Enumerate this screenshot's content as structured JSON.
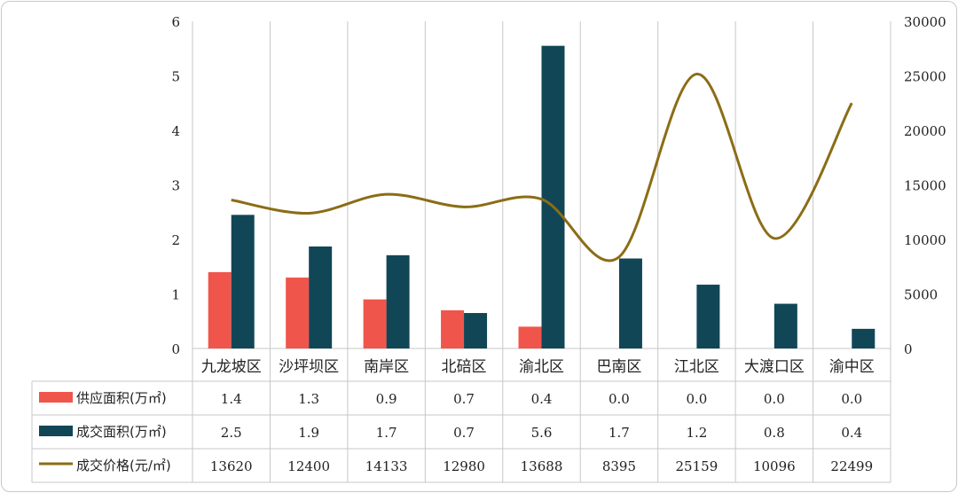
{
  "chart_data": {
    "type": "bar",
    "categories": [
      "九龙坡区",
      "沙坪坝区",
      "南岸区",
      "北碚区",
      "渝北区",
      "巴南区",
      "江北区",
      "大渡口区",
      "渝中区"
    ],
    "series": [
      {
        "name": "供应面积(万㎡)",
        "type": "bar",
        "axis": "left",
        "color": "#f0554c",
        "values": [
          1.4,
          1.3,
          0.9,
          0.7,
          0.4,
          0.0,
          0.0,
          0.0,
          0.0
        ],
        "table_values": [
          "1.4",
          "1.3",
          "0.9",
          "0.7",
          "0.4",
          "0.0",
          "0.0",
          "0.0",
          "0.0"
        ]
      },
      {
        "name": "成交面积(万㎡)",
        "type": "bar",
        "axis": "left",
        "color": "#114657",
        "values": [
          2.45,
          1.87,
          1.71,
          0.65,
          5.55,
          1.65,
          1.17,
          0.82,
          0.36
        ],
        "table_values": [
          "2.5",
          "1.9",
          "1.7",
          "0.7",
          "5.6",
          "1.7",
          "1.2",
          "0.8",
          "0.4"
        ]
      },
      {
        "name": "成交价格(元/㎡)",
        "type": "line",
        "axis": "right",
        "color": "#8b6d16",
        "values": [
          13620,
          12400,
          14133,
          12980,
          13688,
          8395,
          25159,
          10096,
          22499
        ],
        "table_values": [
          "13620",
          "12400",
          "14133",
          "12980",
          "13688",
          "8395",
          "25159",
          "10096",
          "22499"
        ]
      }
    ],
    "y_left": {
      "min": 0,
      "max": 6,
      "ticks": [
        "0",
        "1",
        "2",
        "3",
        "4",
        "5",
        "6"
      ]
    },
    "y_right": {
      "min": 0,
      "max": 30000,
      "ticks": [
        "0",
        "5000",
        "10000",
        "15000",
        "20000",
        "25000",
        "30000"
      ]
    },
    "grid": "vertical",
    "legend": "data-table"
  }
}
